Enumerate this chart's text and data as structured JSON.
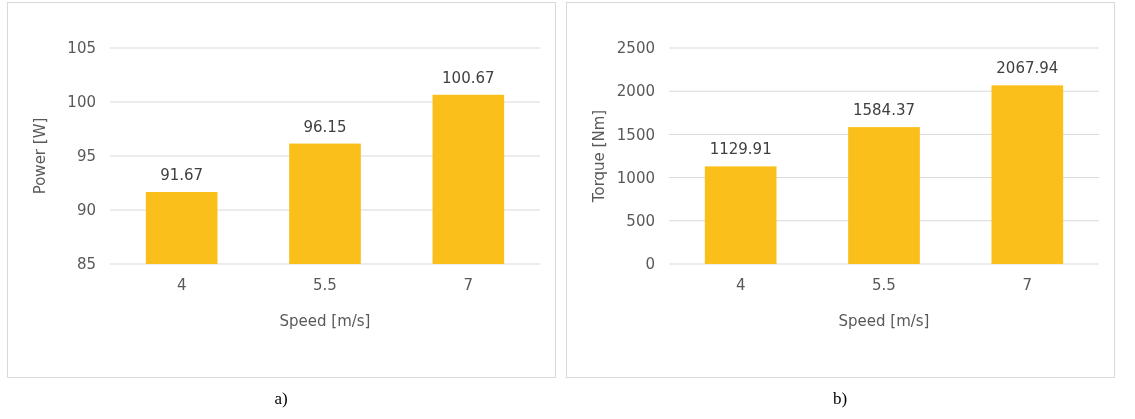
{
  "chart_data": [
    {
      "type": "bar",
      "categories": [
        "4",
        "5.5",
        "7"
      ],
      "values": [
        91.67,
        96.15,
        100.67
      ],
      "color": "#fbbf1c",
      "data_labels": true,
      "xlabel": "Speed [m/s]",
      "ylabel": "Power [W]",
      "ylim": [
        85,
        105
      ],
      "yticks": [
        85,
        90,
        95,
        100,
        105
      ],
      "grid": "y",
      "annotations": [
        "a)"
      ]
    },
    {
      "type": "bar",
      "categories": [
        "4",
        "5.5",
        "7"
      ],
      "values": [
        1129.91,
        1584.37,
        2067.94
      ],
      "color": "#fbbf1c",
      "data_labels": true,
      "xlabel": "Speed [m/s]",
      "ylabel": "Torque [Nm]",
      "ylim": [
        0,
        2500
      ],
      "yticks": [
        0,
        500,
        1000,
        1500,
        2000,
        2500
      ],
      "grid": "y",
      "annotations": [
        "b)"
      ]
    }
  ]
}
